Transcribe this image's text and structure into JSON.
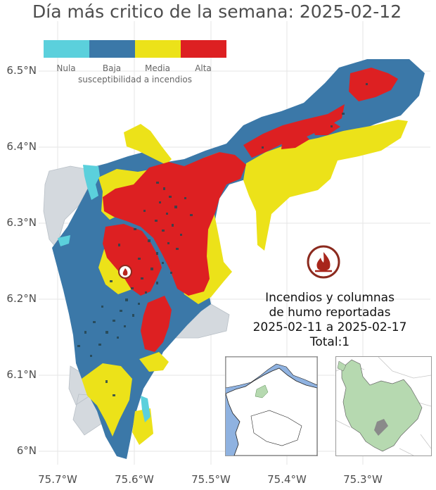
{
  "title": "Día más critico de la semana: 2025-02-12",
  "axes": {
    "lat_ticks": [
      "6.5°N",
      "6.4°N",
      "6.3°N",
      "6.2°N",
      "6.1°N",
      "6°N"
    ],
    "lon_ticks": [
      "75.7°W",
      "75.6°W",
      "75.5°W",
      "75.4°W",
      "75.3°W"
    ]
  },
  "legend": {
    "title": "susceptibilidad a incendios",
    "classes": [
      {
        "label": "Nula",
        "color": "#5bd0dc"
      },
      {
        "label": "Baja",
        "color": "#3b78a8"
      },
      {
        "label": "Media",
        "color": "#ece219"
      },
      {
        "label": "Alta",
        "color": "#dd2022"
      }
    ]
  },
  "fire_report": {
    "lines": [
      "Incendios y columnas",
      "de humo reportadas",
      "2025-02-11 a 2025-02-17",
      "Total:1"
    ],
    "icon": "fire-icon",
    "marker_icon": "fire-marker-icon",
    "marker_position": {
      "lat": 6.226,
      "lon": -75.614
    }
  },
  "colors": {
    "outside_region": "#d4d9de",
    "speckle": "#27454f",
    "ocean": "#8fb2e0",
    "inset_region": "#b6d9b0"
  },
  "insets": [
    {
      "name": "colombia-inset-map"
    },
    {
      "name": "antioquia-inset-map"
    }
  ]
}
